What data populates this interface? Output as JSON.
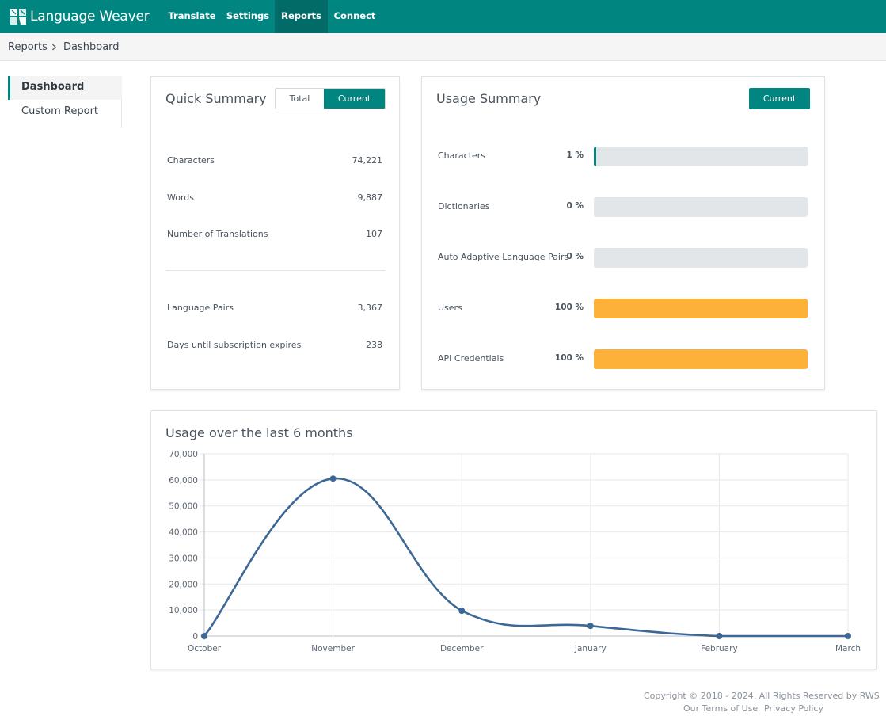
{
  "app": {
    "brand": "Language Weaver",
    "accent": "#008580"
  },
  "nav": {
    "items": [
      {
        "label": "Translate"
      },
      {
        "label": "Settings"
      },
      {
        "label": "Reports",
        "active": true
      },
      {
        "label": "Connect"
      }
    ]
  },
  "breadcrumb": {
    "items": [
      "Reports",
      "Dashboard"
    ]
  },
  "sidebar": {
    "items": [
      {
        "label": "Dashboard",
        "active": true
      },
      {
        "label": "Custom Report"
      }
    ]
  },
  "quick_summary": {
    "title": "Quick Summary",
    "toggle": {
      "total_label": "Total",
      "current_label": "Current",
      "selected": "Current"
    },
    "rows": [
      {
        "label": "Characters",
        "value": "74,221"
      },
      {
        "label": "Words",
        "value": "9,887"
      },
      {
        "label": "Number of Translations",
        "value": "107"
      },
      {
        "label": "Language Pairs",
        "value": "3,367"
      },
      {
        "label": "Days until subscription expires",
        "value": "238"
      }
    ]
  },
  "usage_summary": {
    "title": "Usage Summary",
    "button_label": "Current",
    "rows": [
      {
        "label": "Characters",
        "percent_text": "1 %",
        "percent": 1,
        "color": "#008580"
      },
      {
        "label": "Dictionaries",
        "percent_text": "0 %",
        "percent": 0,
        "color": "#008580"
      },
      {
        "label": "Auto Adaptive Language Pairs",
        "percent_text": "0 %",
        "percent": 0,
        "color": "#008580"
      },
      {
        "label": "Users",
        "percent_text": "100 %",
        "percent": 100,
        "color": "#fdb139"
      },
      {
        "label": "API Credentials",
        "percent_text": "100 %",
        "percent": 100,
        "color": "#fdb139"
      }
    ]
  },
  "usage_chart": {
    "title": "Usage over the last 6 months",
    "chart_data": {
      "type": "line",
      "categories": [
        "October",
        "November",
        "December",
        "January",
        "February",
        "March"
      ],
      "values": [
        0,
        60500,
        9700,
        3900,
        0,
        0
      ],
      "yticks": [
        "0",
        "10,000",
        "20,000",
        "30,000",
        "40,000",
        "50,000",
        "60,000",
        "70,000"
      ],
      "ylim": [
        0,
        70000
      ],
      "grid": true,
      "line_color": "#3d6896"
    }
  },
  "footer": {
    "copyright": "Copyright © 2018 - 2024, All Rights Reserved by RWS",
    "terms": "Our Terms of Use",
    "privacy": "Privacy Policy"
  }
}
